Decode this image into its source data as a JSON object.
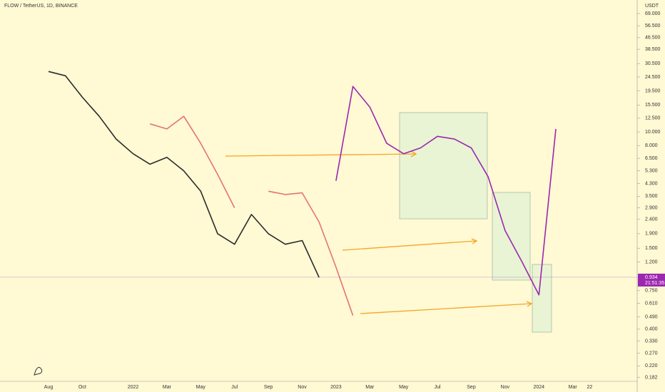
{
  "chart_data": {
    "type": "line",
    "title": "FLOW / TetherUS, 1D, BINANCE",
    "y_unit": "USDT",
    "log_scale": true,
    "categories": [
      "Aug",
      null,
      "Oct",
      null,
      null,
      "2022",
      null,
      "Mar",
      null,
      "May",
      null,
      "Jul",
      null,
      "Sep",
      null,
      "Nov",
      null,
      "2023",
      null,
      "Mar",
      null,
      "May",
      null,
      "Jul",
      null,
      "Sep",
      null,
      "Nov",
      null,
      "2024",
      null,
      "Mar",
      "22"
    ],
    "series": [
      {
        "color": "#2b2b2b",
        "values": [
          26.8,
          25,
          17.6,
          12.9,
          8.9,
          7.0,
          5.9,
          6.6,
          5.3,
          3.8,
          1.9,
          1.6,
          2.6,
          1.9,
          1.6,
          1.7,
          0.93,
          null,
          null,
          null,
          null,
          null,
          null,
          null,
          null,
          null,
          null,
          null,
          null,
          null,
          null,
          null,
          null
        ]
      },
      {
        "color": "#e57373",
        "values": [
          null,
          null,
          null,
          null,
          null,
          null,
          11.4,
          10.5,
          12.9,
          8.3,
          5.0,
          2.9,
          null,
          null,
          null,
          null,
          null,
          null,
          null,
          null,
          null,
          null,
          null,
          null,
          null,
          null,
          null,
          null,
          null,
          null,
          null,
          null,
          null
        ]
      },
      {
        "color": "#e57373",
        "values": [
          null,
          null,
          null,
          null,
          null,
          null,
          null,
          null,
          null,
          null,
          null,
          null,
          null,
          3.8,
          3.6,
          3.7,
          2.3,
          1.1,
          0.5,
          null,
          null,
          null,
          null,
          null,
          null,
          null,
          null,
          null,
          null,
          null,
          null,
          null,
          null
        ]
      },
      {
        "color": "#9c27b0",
        "values": [
          null,
          null,
          null,
          null,
          null,
          null,
          null,
          null,
          null,
          null,
          null,
          null,
          null,
          null,
          null,
          null,
          null,
          4.5,
          21,
          15,
          8.3,
          7.0,
          7.7,
          9.3,
          8.9,
          7.7,
          4.8,
          2.0,
          1.2,
          0.7,
          10.5,
          null,
          null
        ]
      }
    ],
    "ylim": [
      0.175,
      86
    ],
    "yticks": [
      {
        "value": 69,
        "label": "69.000"
      },
      {
        "value": 56.5,
        "label": "56.500"
      },
      {
        "value": 46.5,
        "label": "46.500"
      },
      {
        "value": 38.5,
        "label": "38.500"
      },
      {
        "value": 30.5,
        "label": "30.500"
      },
      {
        "value": 24.5,
        "label": "24.500"
      },
      {
        "value": 19.5,
        "label": "19.500"
      },
      {
        "value": 15.5,
        "label": "15.500"
      },
      {
        "value": 12.5,
        "label": "12.500"
      },
      {
        "value": 10,
        "label": "10.000"
      },
      {
        "value": 8,
        "label": "8.000"
      },
      {
        "value": 6.5,
        "label": "6.500"
      },
      {
        "value": 5.3,
        "label": "5.300"
      },
      {
        "value": 4.3,
        "label": "4.300"
      },
      {
        "value": 3.5,
        "label": "3.500"
      },
      {
        "value": 2.9,
        "label": "2.900"
      },
      {
        "value": 2.4,
        "label": "2.400"
      },
      {
        "value": 1.9,
        "label": "1.900"
      },
      {
        "value": 1.5,
        "label": "1.500"
      },
      {
        "value": 1.2,
        "label": "1.200"
      },
      {
        "value": 0.75,
        "label": "0.750"
      },
      {
        "value": 0.61,
        "label": "0.610"
      },
      {
        "value": 0.49,
        "label": "0.490"
      },
      {
        "value": 0.4,
        "label": "0.400"
      },
      {
        "value": 0.33,
        "label": "0.330"
      },
      {
        "value": 0.27,
        "label": "0.270"
      },
      {
        "value": 0.22,
        "label": "0.220"
      },
      {
        "value": 0.182,
        "label": "0.182"
      }
    ],
    "last_price": {
      "value": 0.934,
      "label": "0.934"
    },
    "countdown": "21:51:35"
  }
}
